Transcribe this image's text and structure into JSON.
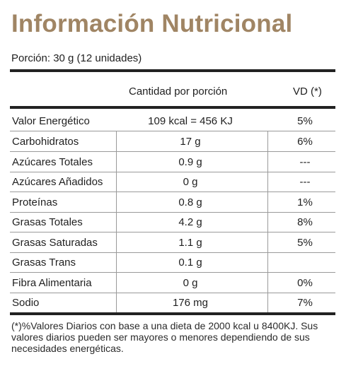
{
  "title": "Información Nutricional",
  "serving": "Porción: 30 g (12 unidades)",
  "header": {
    "amount": "Cantidad por porción",
    "vd": "VD (*)"
  },
  "rows": [
    {
      "name": "Valor Energético",
      "amount": "109 kcal = 456 KJ",
      "vd": "5%"
    },
    {
      "name": "Carbohidratos",
      "amount": "17 g",
      "vd": "6%"
    },
    {
      "name": "Azúcares Totales",
      "amount": "0.9 g",
      "vd": "---"
    },
    {
      "name": "Azúcares Añadidos",
      "amount": "0 g",
      "vd": "---"
    },
    {
      "name": "Proteínas",
      "amount": "0.8 g",
      "vd": "1%"
    },
    {
      "name": "Grasas Totales",
      "amount": "4.2 g",
      "vd": "8%"
    },
    {
      "name": "Grasas Saturadas",
      "amount": "1.1 g",
      "vd": "5%"
    },
    {
      "name": "Grasas Trans",
      "amount": "0.1 g",
      "vd": ""
    },
    {
      "name": "Fibra Alimentaria",
      "amount": "0 g",
      "vd": "0%"
    },
    {
      "name": "Sodio",
      "amount": "176 mg",
      "vd": "7%"
    }
  ],
  "footnote": "(*)%Valores Diarios con base a una dieta de 2000 kcal u 8400KJ. Sus valores diarios pueden ser mayores o menores dependiendo de sus necesidades energéticas."
}
